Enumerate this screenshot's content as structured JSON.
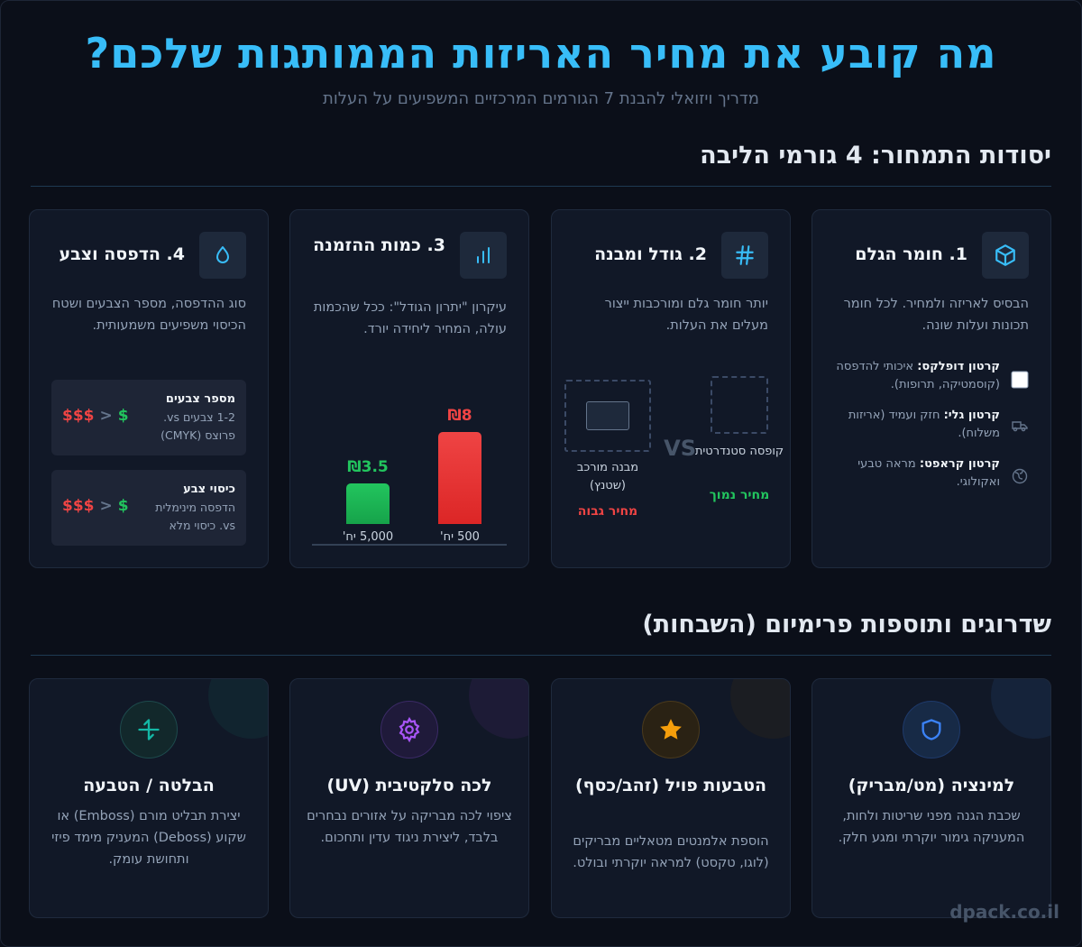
{
  "header": {
    "title": "מה קובע את מחיר האריזות הממותגות שלכם?",
    "subtitle": "מדריך ויזואלי להבנת 7 הגורמים המרכזיים המשפיעים על העלות"
  },
  "section1": {
    "title": "יסודות התמחור: 4 גורמי הליבה"
  },
  "card_material": {
    "icon": "cube-icon",
    "title": "1. חומר הגלם",
    "desc": "הבסיס לאריזה ולמחיר. לכל חומר תכונות ועלות שונה.",
    "items": [
      {
        "icon": "square-icon",
        "name": "קרטון דופלקס:",
        "text": "איכותי להדפסה (קוסמטיקה, תרופות)."
      },
      {
        "icon": "truck-icon",
        "name": "קרטון גלי:",
        "text": "חזק ועמיד (אריזות משלוח)."
      },
      {
        "icon": "globe-leaf-icon",
        "name": "קרטון קראפט:",
        "text": "מראה טבעי ואקולוגי."
      }
    ]
  },
  "card_size": {
    "icon": "hash-icon",
    "title": "2. גודל ומבנה",
    "desc": "יותר חומר גלם ומורכבות ייצור מעלים את העלות.",
    "standard_label": "קופסה סטנדרטית",
    "standard_price": "מחיר נמוך",
    "vs": "VS",
    "complex_label": "מבנה מורכב (שטנץ)",
    "complex_price": "מחיר גבוה"
  },
  "card_quantity": {
    "icon": "bar-chart-icon",
    "title": "3. כמות ההזמנה",
    "desc": "עיקרון \"יתרון הגודל\": ככל שהכמות עולה, המחיר ליחידה יורד.",
    "chart_data": {
      "type": "bar",
      "categories": [
        "500 יח'",
        "5,000 יח'"
      ],
      "values": [
        8,
        3.5
      ],
      "value_labels": [
        "₪8",
        "₪3.5"
      ],
      "colors": [
        "#ef4444",
        "#22c55e"
      ],
      "ylim": [
        0,
        8
      ]
    }
  },
  "card_print": {
    "icon": "droplet-icon",
    "title": "4. הדפסה וצבע",
    "desc": "סוג ההדפסה, מספר הצבעים ושטח הכיסוי משפיעים משמעותית.",
    "box1": {
      "title": "מספר צבעים",
      "text": "1-2 צבעים vs. פרוצס (CMYK)",
      "low": "$",
      "gt": ">",
      "high": "$$$"
    },
    "box2": {
      "title": "כיסוי צבע",
      "text": "הדפסה מינימלית vs. כיסוי מלא",
      "low": "$",
      "gt": ">",
      "high": "$$$"
    }
  },
  "section2": {
    "title": "שדרוגים ותוספות פרימיום (השבחות)"
  },
  "upgrades": [
    {
      "icon": "shield-icon",
      "color": "#3b82f6",
      "title": "למינציה (מט/מבריק)",
      "desc": "שכבת הגנה מפני שריטות ולחות, המעניקה גימור יוקרתי ומגע חלק."
    },
    {
      "icon": "star-icon",
      "color": "#f59e0b",
      "title": "הטבעות פויל (זהב/כסף)",
      "desc": "הוספת אלמנטים מטאליים מבריקים (לוגו, טקסט) למראה יוקרתי ובולט."
    },
    {
      "icon": "gear-icon",
      "color": "#a855f7",
      "title": "לכה סלקטיבית (UV)",
      "desc": "ציפוי לכה מבריקה על אזורים נבחרים בלבד, ליצירת ניגוד עדין ותחכום."
    },
    {
      "icon": "emboss-arrows-icon",
      "color": "#14b8a6",
      "title": "הבלטה / הטבעה",
      "desc": "יצירת תבליט מורם (Emboss) או שקוע (Deboss) המעניק מימד פיזי ותחושת עומק."
    }
  ],
  "brand": "dpack.co.il"
}
